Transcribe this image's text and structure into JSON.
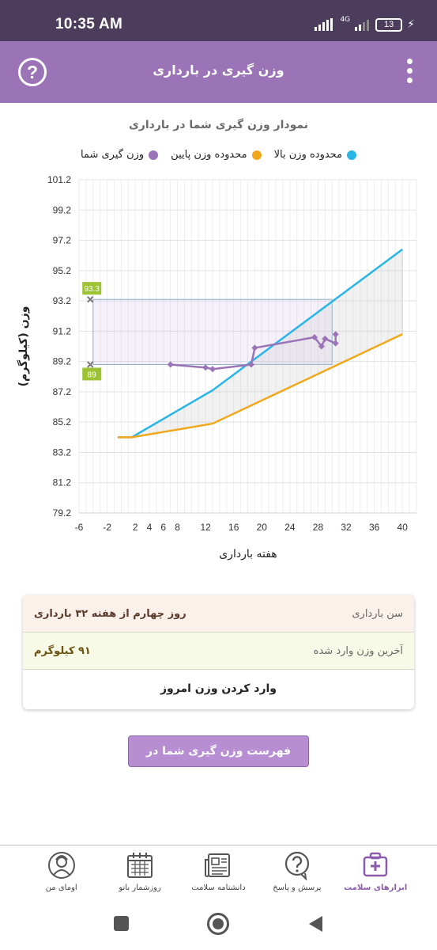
{
  "status": {
    "time": "10:35 AM",
    "network": "4G",
    "battery": "13"
  },
  "appbar": {
    "title": "وزن گیری در بارداری",
    "help": "?"
  },
  "chart_data": {
    "type": "line",
    "title": "نمودار وزن گیری شما در بارداری",
    "xlabel": "هفته بارداری",
    "ylabel": "وزن (کیلوگرم)",
    "xlim": [
      -6,
      42
    ],
    "ylim": [
      79.2,
      101.2
    ],
    "xticks": [
      -6,
      -2,
      2,
      4,
      6,
      8,
      12,
      16,
      20,
      24,
      28,
      32,
      36,
      40
    ],
    "yticks": [
      79.2,
      81.2,
      83.2,
      85.2,
      87.2,
      89.2,
      91.2,
      93.2,
      95.2,
      97.2,
      99.2,
      101.2
    ],
    "legend_position": "top",
    "grid": true,
    "series": [
      {
        "name": "محدوده وزن بالا",
        "color": "#29b6e6",
        "x": [
          -0.5,
          1.5,
          13,
          40
        ],
        "y": [
          84.2,
          84.2,
          87.3,
          96.6
        ]
      },
      {
        "name": "محدوده وزن پایین",
        "color": "#f2a81d",
        "x": [
          -0.5,
          1.5,
          13,
          40
        ],
        "y": [
          84.2,
          84.2,
          85.1,
          91.0
        ]
      },
      {
        "name": "وزن گیری شما",
        "color": "#9a74b6",
        "x": [
          7,
          12,
          13,
          18.5,
          19,
          27.5,
          28.5,
          29,
          30.5,
          30.5
        ],
        "y": [
          89.0,
          88.8,
          88.7,
          89.0,
          90.1,
          90.8,
          90.2,
          90.7,
          90.4,
          91.0
        ]
      }
    ],
    "reference_band": {
      "x": [
        -4,
        30
      ],
      "y": [
        89.0,
        93.3
      ],
      "labels": [
        "93.3",
        "89"
      ]
    }
  },
  "summary": {
    "age_label": "سن بارداری",
    "age_value": "روز چهارم از هفته ۳۲ بارداری",
    "last_label": "آخرین وزن وارد شده",
    "last_value": "۹۱ کیلوگرم",
    "enter_label": "وارد کردن وزن امروز"
  },
  "list_button": "فهرست وزن گیری شما در بارداری",
  "nav": [
    {
      "label": "ابزارهای سلامت",
      "icon": "health-kit-icon"
    },
    {
      "label": "پرسش و پاسخ",
      "icon": "question-bubble-icon"
    },
    {
      "label": "دانشنامه سلامت",
      "icon": "newspaper-icon"
    },
    {
      "label": "روزشمار بانو",
      "icon": "calendar-icon"
    },
    {
      "label": "اومای من",
      "icon": "profile-icon"
    }
  ],
  "colors": {
    "primary": "#9a74b6",
    "statusbar": "#4d3d5c"
  }
}
